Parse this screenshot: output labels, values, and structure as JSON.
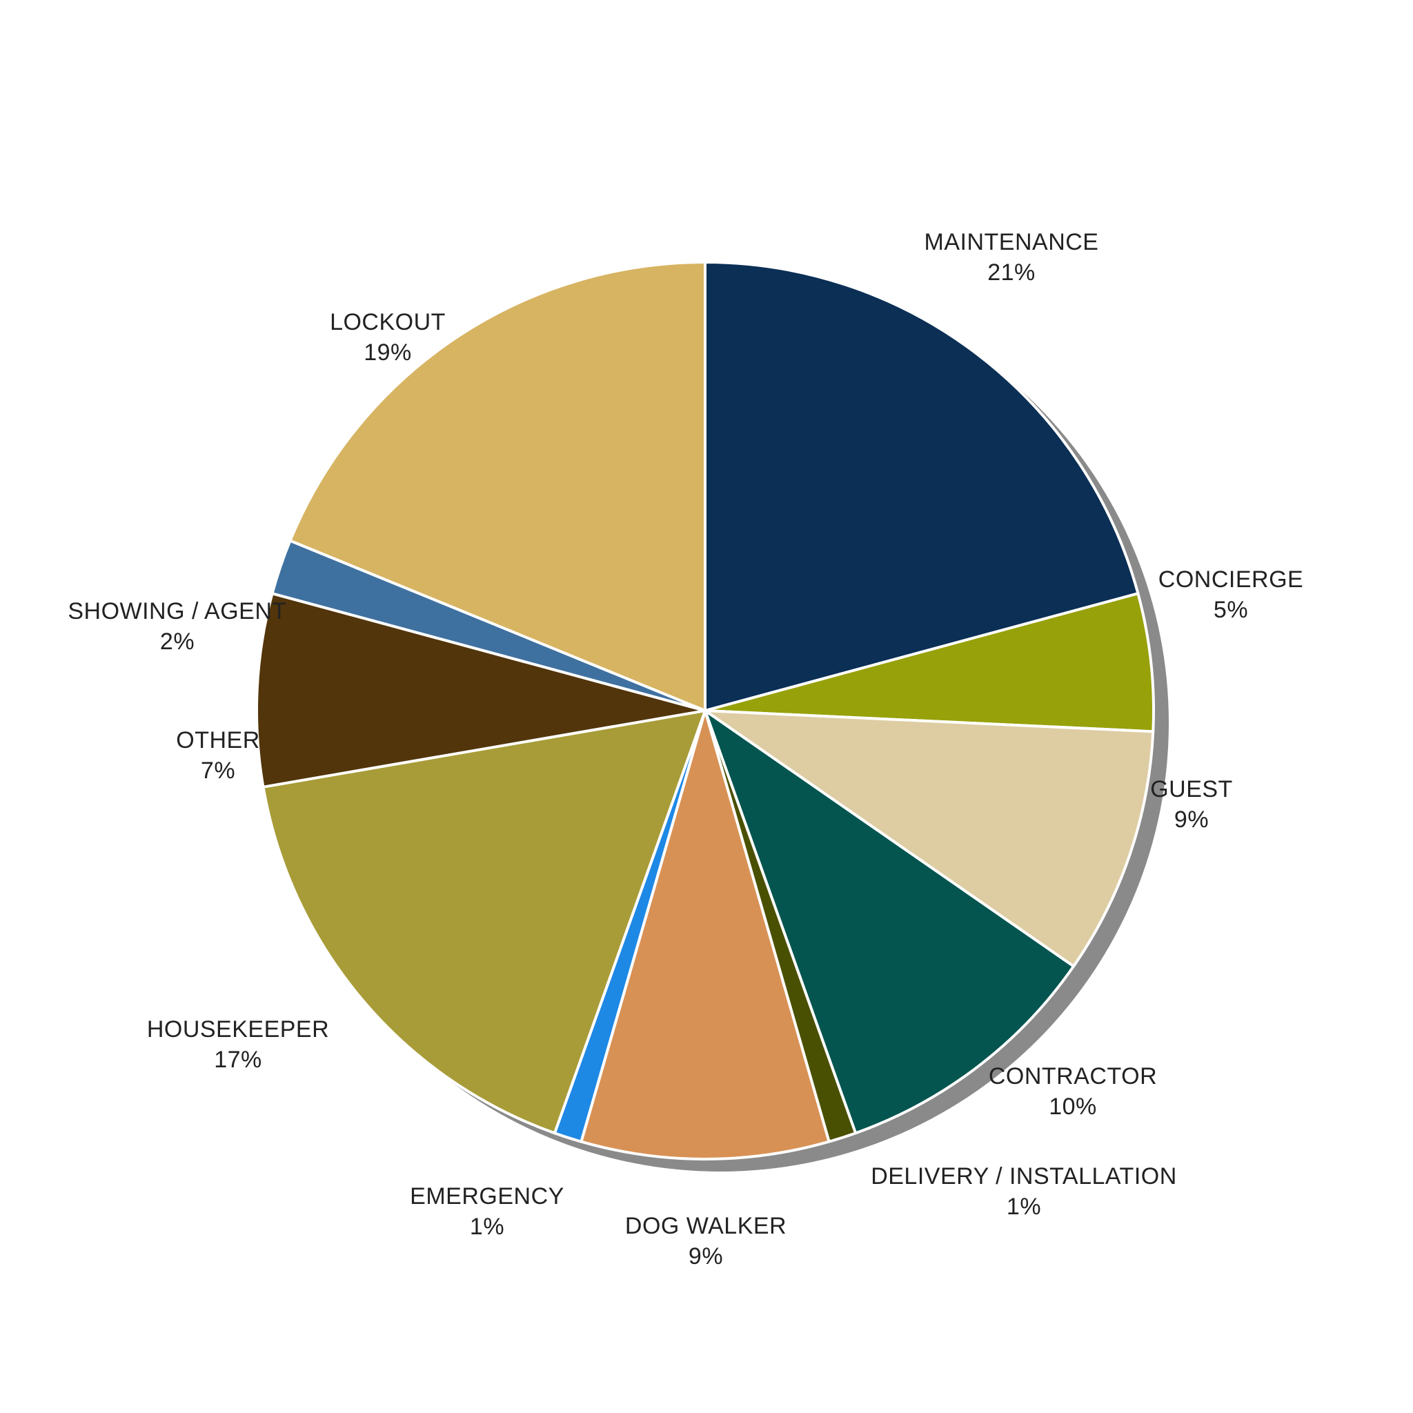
{
  "chart_data": {
    "type": "pie",
    "slices": [
      {
        "label": "MAINTENANCE",
        "value": 21,
        "value_label": "21%",
        "color": "#0b2f55"
      },
      {
        "label": "CONCIERGE",
        "value": 5,
        "value_label": "5%",
        "color": "#97a10a"
      },
      {
        "label": "GUEST",
        "value": 9,
        "value_label": "9%",
        "color": "#decda3"
      },
      {
        "label": "CONTRACTOR",
        "value": 10,
        "value_label": "10%",
        "color": "#04554f"
      },
      {
        "label": "DELIVERY / INSTALLATION",
        "value": 1,
        "value_label": "1%",
        "color": "#4a5002"
      },
      {
        "label": "DOG WALKER",
        "value": 9,
        "value_label": "9%",
        "color": "#d89155"
      },
      {
        "label": "EMERGENCY",
        "value": 1,
        "value_label": "1%",
        "color": "#1e88e5"
      },
      {
        "label": "HOUSEKEEPER",
        "value": 17,
        "value_label": "17%",
        "color": "#a89c39"
      },
      {
        "label": "OTHER",
        "value": 7,
        "value_label": "7%",
        "color": "#52350b"
      },
      {
        "label": "SHOWING / AGENT",
        "value": 2,
        "value_label": "2%",
        "color": "#3f71a0"
      },
      {
        "label": "LOCKOUT",
        "value": 19,
        "value_label": "19%",
        "color": "#d7b462"
      }
    ],
    "start_angle_deg": 0,
    "direction": "clockwise",
    "shadow": true,
    "legend": "none",
    "title": ""
  }
}
